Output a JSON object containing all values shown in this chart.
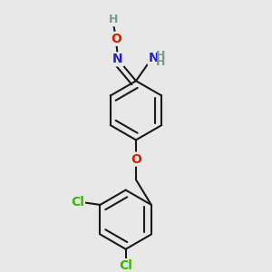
{
  "bg_color": "#e8e8e8",
  "bond_color": "#1a1a1a",
  "bond_width": 1.5,
  "dbo": 0.012,
  "colors": {
    "N": "#2222cc",
    "O": "#cc2200",
    "Cl": "#33bb00",
    "H": "#7a9a8a",
    "C": "#1a1a1a"
  },
  "fs": 10,
  "fsh": 9
}
